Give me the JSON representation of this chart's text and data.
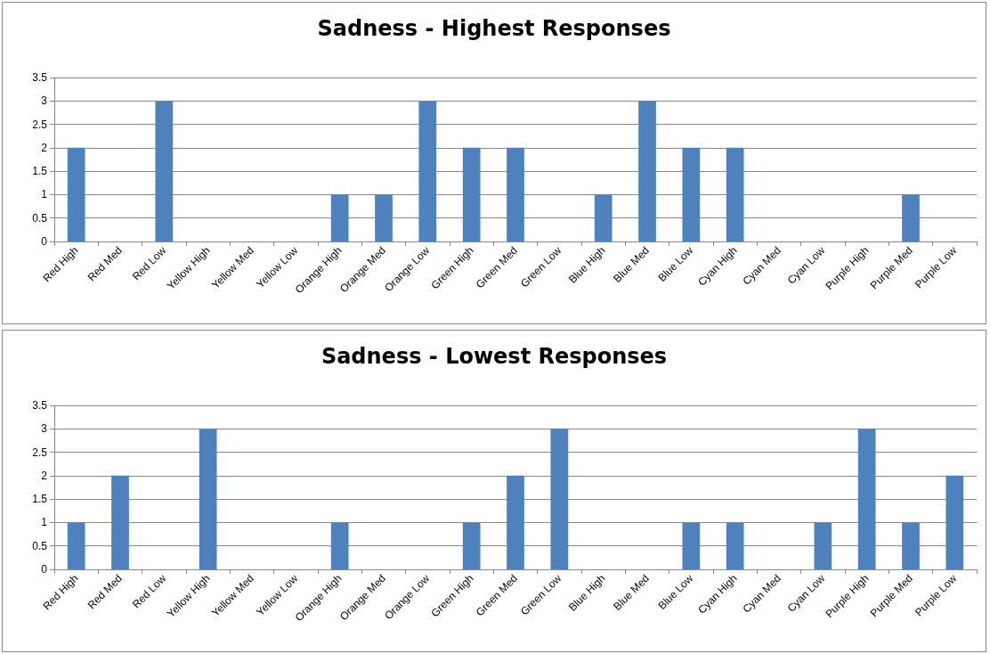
{
  "chart_data": [
    {
      "type": "bar",
      "title": "Sadness - Highest Responses",
      "categories": [
        "Red High",
        "Red Med",
        "Red Low",
        "Yellow High",
        "Yellow Med",
        "Yellow Low",
        "Orange High",
        "Orange Med",
        "Orange Low",
        "Green High",
        "Green Med",
        "Green Low",
        "Blue High",
        "Blue Med",
        "Blue Low",
        "Cyan High",
        "Cyan Med",
        "Cyan Low",
        "Purple High",
        "Purple Med",
        "Purple Low"
      ],
      "values": [
        2,
        0,
        3,
        0,
        0,
        0,
        1,
        1,
        3,
        2,
        2,
        0,
        1,
        3,
        2,
        2,
        0,
        0,
        0,
        1,
        0
      ],
      "color": "#4f81bd",
      "ylim": [
        0,
        3.5
      ],
      "yticks": [
        0,
        0.5,
        1,
        1.5,
        2,
        2.5,
        3,
        3.5
      ],
      "grid": "y"
    },
    {
      "type": "bar",
      "title": "Sadness - Lowest Responses",
      "categories": [
        "Red High",
        "Red Med",
        "Red Low",
        "Yellow High",
        "Yellow Med",
        "Yellow Low",
        "Orange High",
        "Orange Med",
        "Orange Low",
        "Green High",
        "Green Med",
        "Green Low",
        "Blue High",
        "Blue Med",
        "Blue Low",
        "Cyan High",
        "Cyan Med",
        "Cyan Low",
        "Purple High",
        "Purple Med",
        "Purple Low"
      ],
      "values": [
        1,
        2,
        0,
        3,
        0,
        0,
        1,
        0,
        0,
        1,
        2,
        3,
        0,
        0,
        1,
        1,
        0,
        1,
        3,
        1,
        2
      ],
      "color": "#4f81bd",
      "ylim": [
        0,
        3.5
      ],
      "yticks": [
        0,
        0.5,
        1,
        1.5,
        2,
        2.5,
        3,
        3.5
      ],
      "grid": "y"
    }
  ]
}
